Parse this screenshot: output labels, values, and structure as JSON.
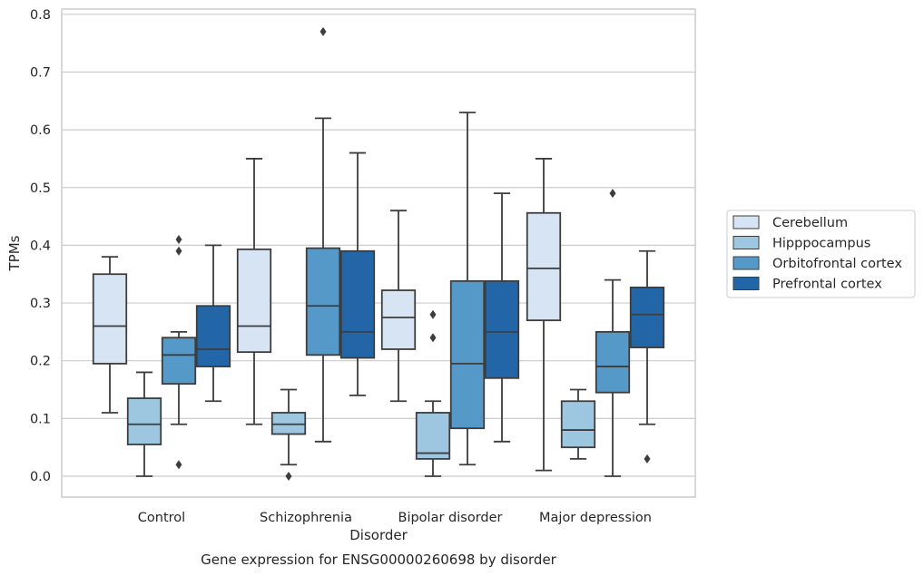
{
  "chart_data": {
    "type": "box",
    "title": "",
    "caption": "Gene expression for ENSG00000260698 by disorder",
    "xlabel": "Disorder",
    "ylabel": "TPMs",
    "ylim": [
      -0.04,
      0.81
    ],
    "yticks": [
      "0.0",
      "0.1",
      "0.2",
      "0.3",
      "0.4",
      "0.5",
      "0.6",
      "0.7",
      "0.8"
    ],
    "grid": true,
    "legend_placement": "right",
    "categories": [
      "Control",
      "Schizophrenia",
      "Bipolar disorder",
      "Major depression"
    ],
    "series": [
      {
        "name": "Cerebellum",
        "color": "#d6e4f4",
        "boxes": [
          {
            "whisker_low": 0.11,
            "q1": 0.195,
            "median": 0.26,
            "q3": 0.35,
            "whisker_high": 0.38,
            "outliers": []
          },
          {
            "whisker_low": 0.09,
            "q1": 0.215,
            "median": 0.26,
            "q3": 0.393,
            "whisker_high": 0.55,
            "outliers": []
          },
          {
            "whisker_low": 0.13,
            "q1": 0.22,
            "median": 0.275,
            "q3": 0.322,
            "whisker_high": 0.46,
            "outliers": []
          },
          {
            "whisker_low": 0.01,
            "q1": 0.27,
            "median": 0.36,
            "q3": 0.456,
            "whisker_high": 0.55,
            "outliers": []
          }
        ]
      },
      {
        "name": "Hipppocampus",
        "color": "#9dc6e0",
        "boxes": [
          {
            "whisker_low": 0.0,
            "q1": 0.055,
            "median": 0.09,
            "q3": 0.135,
            "whisker_high": 0.18,
            "outliers": []
          },
          {
            "whisker_low": 0.02,
            "q1": 0.073,
            "median": 0.09,
            "q3": 0.11,
            "whisker_high": 0.15,
            "outliers": [
              0.0
            ]
          },
          {
            "whisker_low": 0.0,
            "q1": 0.03,
            "median": 0.04,
            "q3": 0.11,
            "whisker_high": 0.13,
            "outliers": [
              0.24,
              0.28
            ]
          },
          {
            "whisker_low": 0.03,
            "q1": 0.05,
            "median": 0.08,
            "q3": 0.13,
            "whisker_high": 0.15,
            "outliers": []
          }
        ]
      },
      {
        "name": "Orbitofrontal cortex",
        "color": "#5499c7",
        "boxes": [
          {
            "whisker_low": 0.09,
            "q1": 0.16,
            "median": 0.21,
            "q3": 0.24,
            "whisker_high": 0.25,
            "outliers": [
              0.02,
              0.39,
              0.41
            ]
          },
          {
            "whisker_low": 0.06,
            "q1": 0.21,
            "median": 0.295,
            "q3": 0.395,
            "whisker_high": 0.62,
            "outliers": [
              0.77
            ]
          },
          {
            "whisker_low": 0.02,
            "q1": 0.083,
            "median": 0.195,
            "q3": 0.338,
            "whisker_high": 0.63,
            "outliers": []
          },
          {
            "whisker_low": 0.0,
            "q1": 0.145,
            "median": 0.19,
            "q3": 0.25,
            "whisker_high": 0.34,
            "outliers": [
              0.49
            ]
          }
        ]
      },
      {
        "name": "Prefrontal cortex",
        "color": "#2266a8",
        "boxes": [
          {
            "whisker_low": 0.13,
            "q1": 0.19,
            "median": 0.22,
            "q3": 0.295,
            "whisker_high": 0.4,
            "outliers": []
          },
          {
            "whisker_low": 0.14,
            "q1": 0.205,
            "median": 0.25,
            "q3": 0.39,
            "whisker_high": 0.56,
            "outliers": []
          },
          {
            "whisker_low": 0.06,
            "q1": 0.17,
            "median": 0.25,
            "q3": 0.338,
            "whisker_high": 0.49,
            "outliers": []
          },
          {
            "whisker_low": 0.09,
            "q1": 0.223,
            "median": 0.28,
            "q3": 0.327,
            "whisker_high": 0.39,
            "outliers": [
              0.03
            ]
          }
        ]
      }
    ]
  }
}
